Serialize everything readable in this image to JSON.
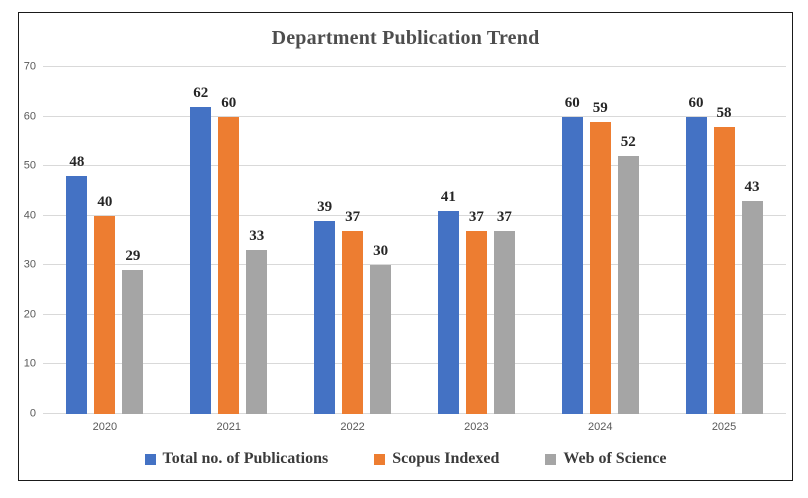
{
  "title": "Department Publication Trend",
  "colors": {
    "series_blue": "#4472C4",
    "series_orange": "#ED7D31",
    "series_gray": "#A5A5A5",
    "gridline": "#D9D9D9",
    "title_text": "#4D4D4D",
    "data_label_text": "#262626",
    "tick_text": "#595959",
    "frame_border": "#1A1A1A"
  },
  "chart_data": {
    "type": "bar",
    "title": "Department Publication Trend",
    "categories": [
      "2020",
      "2021",
      "2022",
      "2023",
      "2024",
      "2025"
    ],
    "series": [
      {
        "name": "Total no. of Publications",
        "color": "#4472C4",
        "values": [
          48,
          62,
          39,
          41,
          60,
          60
        ]
      },
      {
        "name": "Scopus Indexed",
        "color": "#ED7D31",
        "values": [
          40,
          60,
          37,
          37,
          59,
          58
        ]
      },
      {
        "name": "Web of Science",
        "color": "#A5A5A5",
        "values": [
          29,
          33,
          30,
          37,
          52,
          43
        ]
      }
    ],
    "xlabel": "",
    "ylabel": "",
    "ylim": [
      0,
      70
    ],
    "ytick_step": 10,
    "grid": true,
    "data_labels": true,
    "legend_position": "bottom"
  }
}
